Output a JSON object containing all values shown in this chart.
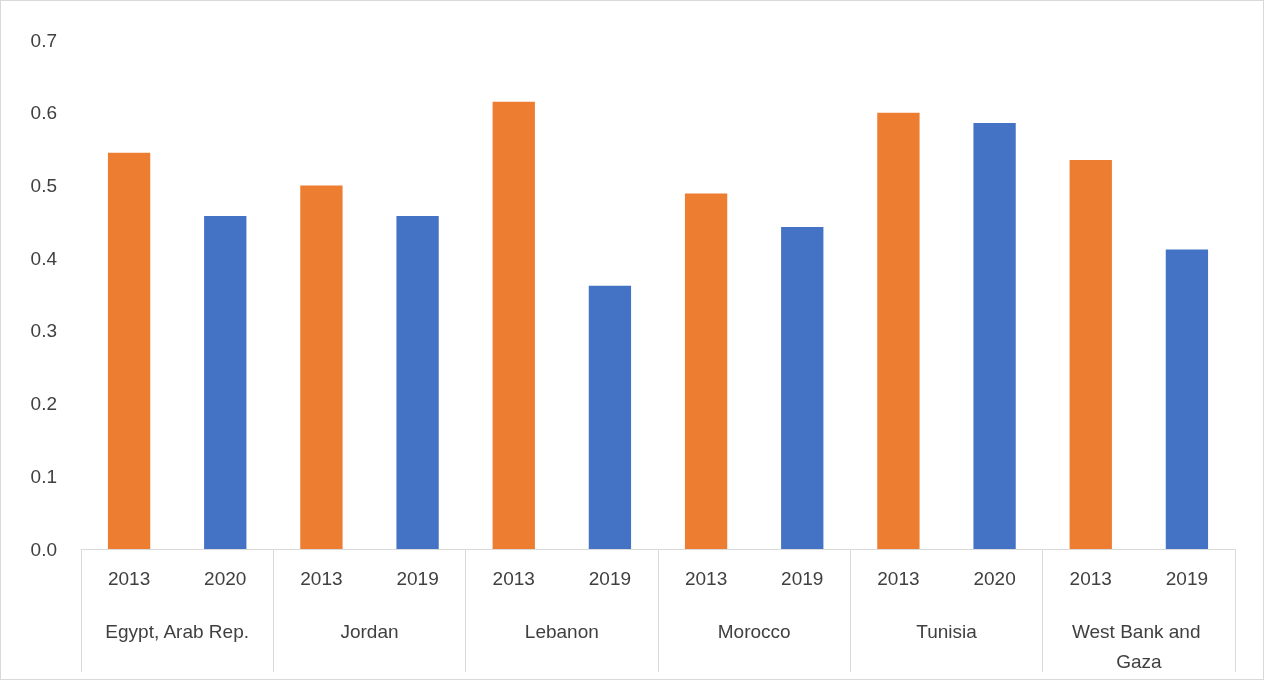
{
  "chart_data": {
    "type": "bar",
    "categories": [
      "2013",
      "2020",
      "2013",
      "2019",
      "2013",
      "2019",
      "2013",
      "2019",
      "2013",
      "2020",
      "2013",
      "2019"
    ],
    "values": [
      0.545,
      0.458,
      0.5,
      0.458,
      0.615,
      0.362,
      0.489,
      0.443,
      0.6,
      0.586,
      0.535,
      0.412
    ],
    "colors": [
      "#ed7d31",
      "#4472c4",
      "#ed7d31",
      "#4472c4",
      "#ed7d31",
      "#4472c4",
      "#ed7d31",
      "#4472c4",
      "#ed7d31",
      "#4472c4",
      "#ed7d31",
      "#4472c4"
    ],
    "annotations": [
      "Egypt, Arab Rep.",
      "Jordan",
      "Lebanon",
      "Morocco",
      "Tunisia",
      "West Bank and Gaza"
    ],
    "ylim": [
      0,
      0.7
    ],
    "yticks": [
      {
        "value": 0,
        "label": "0.0"
      },
      0.1,
      0.2,
      0.3,
      0.4,
      0.5,
      0.6,
      0.7
    ],
    "grid": false
  }
}
